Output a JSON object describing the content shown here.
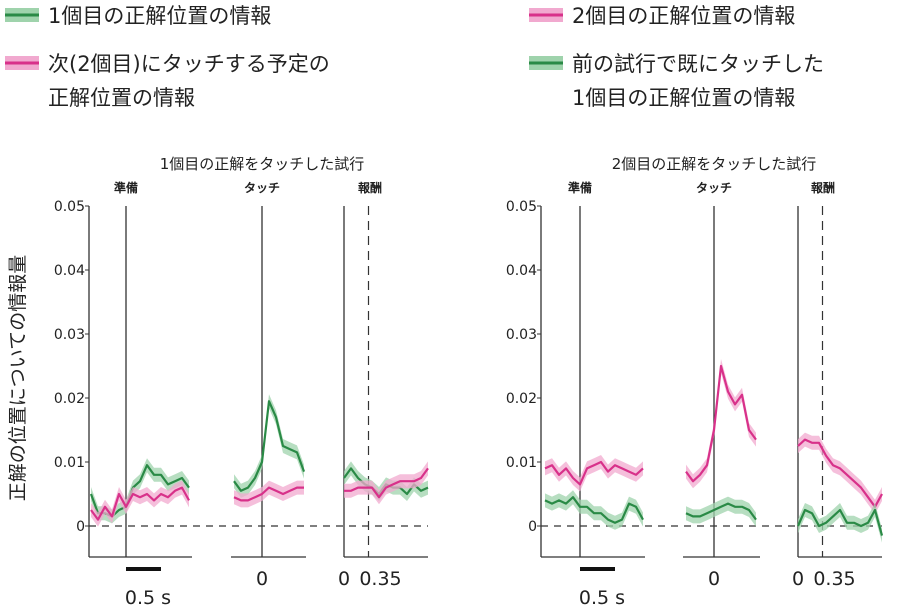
{
  "colors": {
    "green": "#2a8a46",
    "pink": "#d8318a",
    "green_band": "#9fd3ac",
    "pink_band": "#f1a9cf",
    "axis": "#333333"
  },
  "legend": [
    {
      "label": "1個目の正解位置の情報",
      "color": "green"
    },
    {
      "label": "2個目の正解位置の情報",
      "color": "pink"
    },
    {
      "label_lines": [
        "次(2個目)にタッチする予定の",
        "正解位置の情報"
      ],
      "color": "pink"
    },
    {
      "label_lines": [
        "前の試行で既にタッチした",
        "1個目の正解位置の情報"
      ],
      "color": "green"
    }
  ],
  "ylabel": "正解の位置についての情報量",
  "chart_data": [
    {
      "type": "line",
      "title": "1個目の正解をタッチした試行",
      "ylabel": "正解の位置についての情報量",
      "ylim": [
        -0.005,
        0.05
      ],
      "yticks": [
        "0.05",
        "0.04",
        "0.03",
        "0.02",
        "0.01",
        "0"
      ],
      "ytick_values": [
        0.05,
        0.04,
        0.03,
        0.02,
        0.01,
        0
      ],
      "scalebar": "0.5 s",
      "scalebar_seconds": 0.5,
      "panels": [
        {
          "label": "準備",
          "t0": -0.5,
          "dt": 0.1,
          "xticks": [],
          "series": [
            {
              "name": "1個目の正解位置の情報",
              "color": "green",
              "values": [
                0.005,
                0.002,
                0.002,
                0.0015,
                0.0025,
                0.003,
                0.006,
                0.007,
                0.0095,
                0.008,
                0.008,
                0.0065,
                0.007,
                0.0075,
                0.006
              ]
            },
            {
              "name": "次(2個目)にタッチする予定の正解位置の情報",
              "color": "pink",
              "values": [
                0.0025,
                0.001,
                0.003,
                0.0015,
                0.005,
                0.003,
                0.005,
                0.0045,
                0.005,
                0.004,
                0.005,
                0.0045,
                0.0055,
                0.006,
                0.004
              ]
            }
          ]
        },
        {
          "label": "タッチ",
          "t0": -0.4,
          "dt": 0.1,
          "xticks": [
            {
              "value": 0,
              "label": "0"
            }
          ],
          "series": [
            {
              "name": "1個目の正解位置の情報",
              "color": "green",
              "values": [
                0.007,
                0.0055,
                0.006,
                0.0075,
                0.01,
                0.0195,
                0.017,
                0.0125,
                0.012,
                0.0115,
                0.0085
              ]
            },
            {
              "name": "次(2個目)にタッチする予定の正解位置の情報",
              "color": "pink",
              "values": [
                0.0045,
                0.004,
                0.004,
                0.0045,
                0.005,
                0.006,
                0.0055,
                0.005,
                0.0055,
                0.006,
                0.006
              ]
            }
          ]
        },
        {
          "label": "報酬",
          "t0": 0,
          "dt": 0.1,
          "xticks": [
            {
              "value": 0,
              "label": "0"
            },
            {
              "value": 0.35,
              "label": "0.35"
            }
          ],
          "series": [
            {
              "name": "1個目の正解位置の情報",
              "color": "green",
              "values": [
                0.0075,
                0.009,
                0.0075,
                0.0065,
                0.006,
                0.005,
                0.0065,
                0.006,
                0.006,
                0.005,
                0.0065,
                0.0055,
                0.006
              ]
            },
            {
              "name": "次(2個目)にタッチする予定の正解位置の情報",
              "color": "pink",
              "values": [
                0.0055,
                0.0055,
                0.006,
                0.006,
                0.006,
                0.0045,
                0.006,
                0.0065,
                0.007,
                0.007,
                0.007,
                0.0075,
                0.009
              ]
            }
          ]
        }
      ]
    },
    {
      "type": "line",
      "title": "2個目の正解をタッチした試行",
      "ylabel": "正解の位置についての情報量",
      "ylim": [
        -0.005,
        0.05
      ],
      "yticks": [
        "0.05",
        "0.04",
        "0.03",
        "0.02",
        "0.01",
        "0"
      ],
      "ytick_values": [
        0.05,
        0.04,
        0.03,
        0.02,
        0.01,
        0
      ],
      "scalebar": "0.5 s",
      "scalebar_seconds": 0.5,
      "panels": [
        {
          "label": "準備",
          "t0": -0.5,
          "dt": 0.1,
          "xticks": [],
          "series": [
            {
              "name": "2個目の正解位置の情報",
              "color": "pink",
              "values": [
                0.009,
                0.0095,
                0.008,
                0.009,
                0.0075,
                0.0065,
                0.009,
                0.0095,
                0.01,
                0.0085,
                0.0095,
                0.009,
                0.0085,
                0.008,
                0.009
              ]
            },
            {
              "name": "前の試行で既にタッチした1個目の正解位置の情報",
              "color": "green",
              "values": [
                0.004,
                0.0035,
                0.004,
                0.0035,
                0.0045,
                0.003,
                0.003,
                0.002,
                0.002,
                0.001,
                0.0005,
                0.001,
                0.0035,
                0.003,
                0.001
              ]
            }
          ]
        },
        {
          "label": "タッチ",
          "t0": -0.4,
          "dt": 0.1,
          "xticks": [
            {
              "value": 0,
              "label": "0"
            }
          ],
          "series": [
            {
              "name": "2個目の正解位置の情報",
              "color": "pink",
              "values": [
                0.0085,
                0.007,
                0.008,
                0.0095,
                0.015,
                0.025,
                0.021,
                0.019,
                0.0205,
                0.015,
                0.0135
              ]
            },
            {
              "name": "前の試行で既にタッチした1個目の正解位置の情報",
              "color": "green",
              "values": [
                0.002,
                0.0015,
                0.0015,
                0.002,
                0.0025,
                0.003,
                0.0035,
                0.003,
                0.003,
                0.0025,
                0.001
              ]
            }
          ]
        },
        {
          "label": "報酬",
          "t0": 0,
          "dt": 0.1,
          "xticks": [
            {
              "value": 0,
              "label": "0"
            },
            {
              "value": 0.35,
              "label": "0.35"
            }
          ],
          "series": [
            {
              "name": "2個目の正解位置の情報",
              "color": "pink",
              "values": [
                0.0125,
                0.0135,
                0.013,
                0.013,
                0.011,
                0.0095,
                0.009,
                0.008,
                0.007,
                0.006,
                0.0045,
                0.003,
                0.005
              ]
            },
            {
              "name": "前の試行で既にタッチした1個目の正解位置の情報",
              "color": "green",
              "values": [
                0,
                0.0025,
                0.002,
                0,
                0.0005,
                0.0015,
                0.0025,
                0.0005,
                0.0005,
                0,
                0.0005,
                0.0025,
                -0.0015
              ]
            }
          ]
        }
      ]
    }
  ]
}
